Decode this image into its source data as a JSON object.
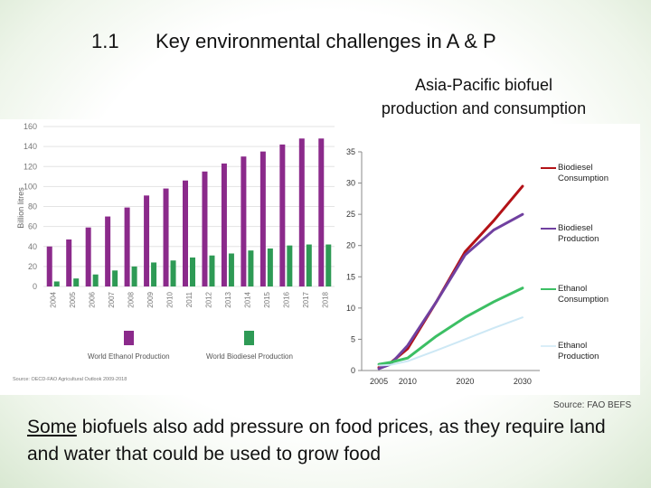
{
  "slide": {
    "number": "1.1",
    "title": "Key environmental challenges in A & P",
    "panel_title_line1": "Asia-Pacific biofuel",
    "panel_title_line2": "production and consumption",
    "source": "Source: FAO BEFS",
    "bottom_emph": "Some",
    "bottom_rest": " biofuels also add pressure on food prices, as they require land and water that could be used to grow food"
  },
  "colors": {
    "ethanol_bar": "#8b2a8b",
    "biodiesel_bar": "#2e9a55",
    "biodiesel_consumption": "#b31217",
    "biodiesel_production": "#7040a0",
    "ethanol_consumption": "#3cbf64",
    "ethanol_production": "#cde8f5"
  },
  "chart_data": [
    {
      "type": "bar",
      "ylabel": "Billion litres",
      "ylim": [
        0,
        160
      ],
      "yticks": [
        0,
        20,
        40,
        60,
        80,
        100,
        120,
        140,
        160
      ],
      "categories": [
        "2004",
        "2005",
        "2006",
        "2007",
        "2008",
        "2009",
        "2010",
        "2011",
        "2012",
        "2013",
        "2014",
        "2015",
        "2016",
        "2017",
        "2018"
      ],
      "series": [
        {
          "name": "World Ethanol Production",
          "values": [
            40,
            47,
            59,
            70,
            79,
            91,
            98,
            106,
            115,
            123,
            130,
            135,
            142,
            148,
            148
          ]
        },
        {
          "name": "World Biodiesel Production",
          "values": [
            5,
            8,
            12,
            16,
            20,
            24,
            26,
            29,
            31,
            33,
            36,
            38,
            41,
            42,
            42
          ]
        }
      ],
      "source": "Source: OECD-FAO Agricultural Outlook 2009-2018",
      "legend": "bottom"
    },
    {
      "type": "line",
      "ylim": [
        0,
        35
      ],
      "yticks": [
        0,
        5,
        10,
        15,
        20,
        25,
        30,
        35
      ],
      "xlim": [
        2002,
        2033
      ],
      "xticks": [
        2005,
        2010,
        2020,
        2030
      ],
      "series": [
        {
          "name": "Biodiesel Consumption",
          "x": [
            2005,
            2007,
            2010,
            2015,
            2020,
            2025,
            2030
          ],
          "y": [
            0.5,
            1.2,
            3.5,
            11,
            19,
            24,
            29.5
          ]
        },
        {
          "name": "Biodiesel Production",
          "x": [
            2005,
            2007,
            2010,
            2015,
            2020,
            2025,
            2030
          ],
          "y": [
            0.3,
            1.0,
            4.0,
            11,
            18.5,
            22.5,
            25
          ]
        },
        {
          "name": "Ethanol Consumption",
          "x": [
            2005,
            2007,
            2010,
            2015,
            2020,
            2025,
            2030
          ],
          "y": [
            1.0,
            1.3,
            2.0,
            5.5,
            8.5,
            11,
            13.2
          ]
        },
        {
          "name": "Ethanol Production",
          "x": [
            2005,
            2007,
            2010,
            2015,
            2020,
            2025,
            2030
          ],
          "y": [
            0.8,
            0.9,
            1.5,
            3.2,
            5.0,
            6.8,
            8.5
          ]
        }
      ],
      "legend": "right"
    }
  ]
}
